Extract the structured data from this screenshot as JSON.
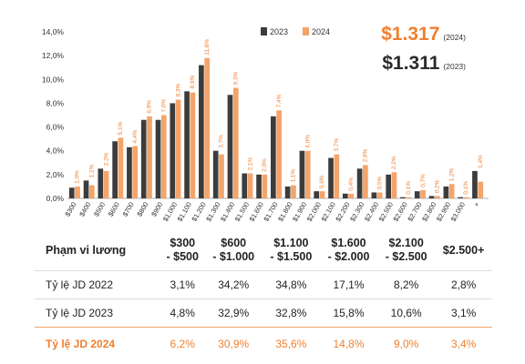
{
  "chart_data": {
    "type": "bar",
    "categories": [
      "$300",
      "$400",
      "$500",
      "$600",
      "$700",
      "$800",
      "$900",
      "$1.000",
      "$1.100",
      "$1.200",
      "$1.300",
      "$1.400",
      "$1.500",
      "$1.600",
      "$1.700",
      "$1.800",
      "$1.900",
      "$2.000",
      "$2.100",
      "$2.200",
      "$2.300",
      "$2.400",
      "$2.500",
      "$2.600",
      "$2.700",
      "$2.800",
      "$2.900",
      "$3.000",
      "+"
    ],
    "series": [
      {
        "name": "2023",
        "color": "#3c3c3c",
        "values": [
          0.9,
          1.5,
          2.5,
          4.8,
          4.3,
          6.6,
          6.6,
          8.0,
          9.0,
          11.2,
          4.0,
          8.7,
          2.1,
          2.0,
          6.9,
          1.0,
          4.0,
          0.6,
          3.4,
          0.4,
          2.5,
          0.5,
          2.0,
          0.1,
          0.6,
          0.2,
          1.0,
          0.1,
          2.3
        ]
      },
      {
        "name": "2024",
        "color": "#f4a46a",
        "values": [
          1.0,
          1.1,
          2.3,
          5.1,
          4.4,
          6.9,
          7.0,
          8.3,
          8.9,
          11.8,
          3.7,
          9.3,
          2.1,
          2.0,
          7.4,
          1.1,
          4.0,
          0.6,
          3.7,
          0.4,
          2.8,
          0.5,
          2.2,
          0.1,
          0.7,
          0.2,
          1.2,
          0.1,
          1.4
        ]
      }
    ],
    "data_labels_2024": [
      "1,0%",
      "1,1%",
      "2,3%",
      "5,1%",
      "4,4%",
      "6,9%",
      "7,0%",
      "8,3%",
      "8,9%",
      "11,8%",
      "3,7%",
      "9,3%",
      "2,1%",
      "2,0%",
      "7,4%",
      "1,1%",
      "4,0%",
      "0,6%",
      "3,7%",
      "0,4%",
      "2,8%",
      "0,5%",
      "2,2%",
      "0,1%",
      "0,7%",
      "0,2%",
      "1,2%",
      "0,1%",
      "1,4%"
    ],
    "yticks": [
      "0,0%",
      "2,0%",
      "4,0%",
      "6,0%",
      "8,0%",
      "10,0%",
      "12,0%",
      "14,0%"
    ],
    "ylim": [
      0,
      14
    ],
    "legend_position": "top"
  },
  "summary": {
    "v2024": "$1.317",
    "l2024": "(2024)",
    "v2023": "$1.311",
    "l2023": "(2023)"
  },
  "table": {
    "header": [
      "Phạm vi lương",
      "$300\n- $500",
      "$600\n- $1.000",
      "$1.100\n- $1.500",
      "$1.600\n- $2.000",
      "$2.100\n- $2.500",
      "$2.500+"
    ],
    "rows": [
      {
        "label": "Tỷ lệ JD 2022",
        "values": [
          "3,1%",
          "34,2%",
          "34,8%",
          "17,1%",
          "8,2%",
          "2,8%"
        ]
      },
      {
        "label": "Tỷ lệ JD 2023",
        "values": [
          "4,8%",
          "32,9%",
          "32,8%",
          "15,8%",
          "10,6%",
          "3,1%"
        ]
      },
      {
        "label": "Tỷ lệ JD 2024",
        "values": [
          "6,2%",
          "30,9%",
          "35,6%",
          "14,8%",
          "9,0%",
          "3,4%"
        ]
      }
    ]
  }
}
